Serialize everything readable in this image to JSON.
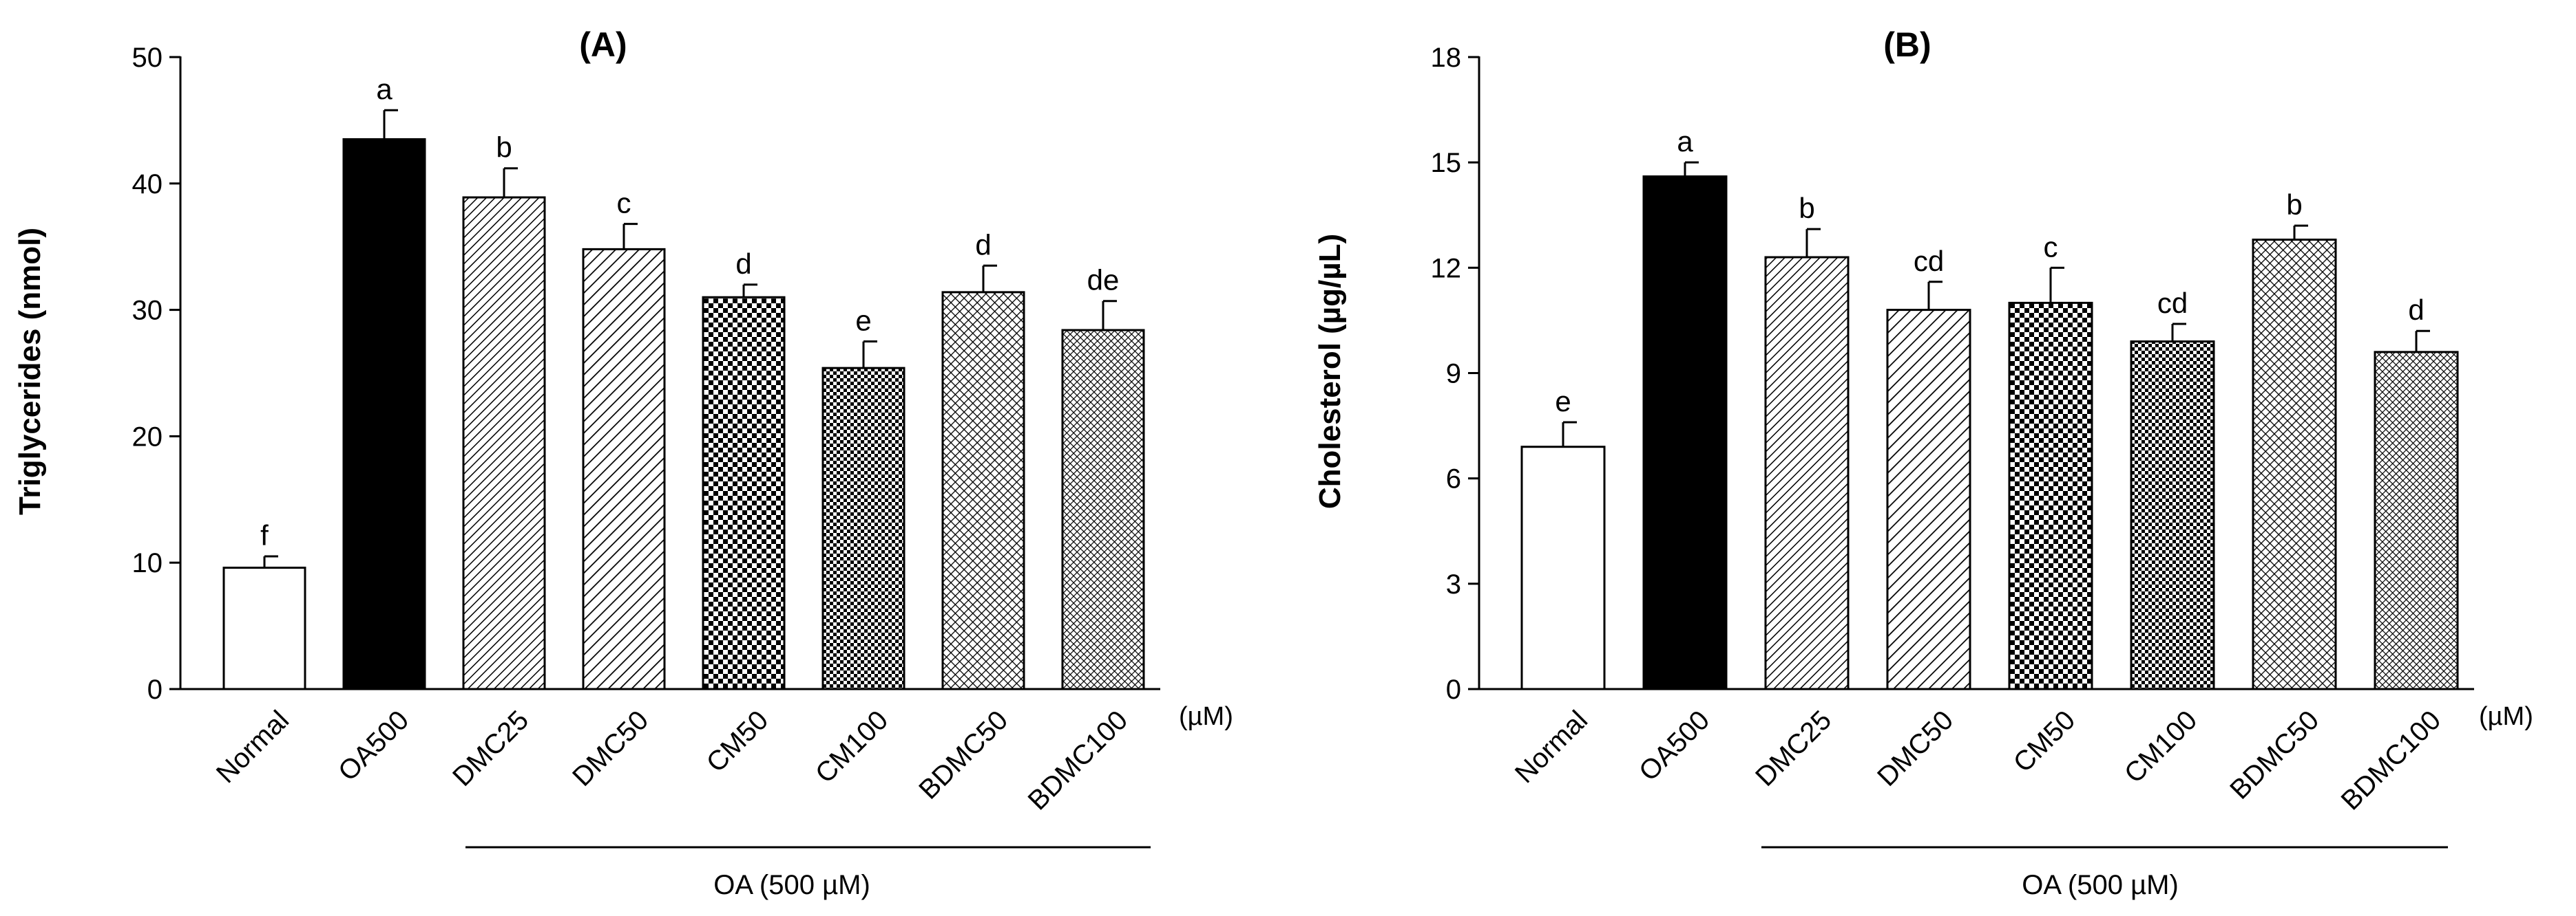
{
  "colors": {
    "ink": "#000000",
    "paper": "#ffffff",
    "error_bar": "#000000"
  },
  "chart_data": [
    {
      "type": "bar",
      "panel": "A",
      "title": "(A)",
      "ylabel": "Triglycerides (nmol)",
      "xlabel": "",
      "unit_label": "(µM)",
      "group_label": "OA (500 µM)",
      "ylim": [
        0,
        50
      ],
      "yticks": [
        0,
        10,
        20,
        30,
        40,
        50
      ],
      "ytick_labels": [
        "0",
        "10",
        "20",
        "30",
        "40",
        "50"
      ],
      "grid": false,
      "categories": [
        "Normal",
        "OA500",
        "DMC25",
        "DMC50",
        "CM50",
        "CM100",
        "BDMC50",
        "BDMC100"
      ],
      "values": [
        9.6,
        43.5,
        38.9,
        34.8,
        31.0,
        25.4,
        31.4,
        28.4
      ],
      "errors": [
        0.9,
        2.3,
        2.3,
        2.0,
        1.0,
        2.1,
        2.1,
        2.3
      ],
      "significance": [
        "f",
        "a",
        "b",
        "c",
        "d",
        "e",
        "d",
        "de"
      ],
      "fills": [
        "white",
        "black",
        "diag-fine",
        "diag-coarse",
        "checker-coarse",
        "checker-fine",
        "cross-coarse",
        "cross-fine"
      ]
    },
    {
      "type": "bar",
      "panel": "B",
      "title": "(B)",
      "ylabel": "Cholesterol (µg/µL)",
      "xlabel": "",
      "unit_label": "(µM)",
      "group_label": "OA (500 µM)",
      "ylim": [
        0,
        18
      ],
      "yticks": [
        0,
        3,
        6,
        9,
        12,
        15,
        18
      ],
      "ytick_labels": [
        "0",
        "3",
        "6",
        "9",
        "12",
        "15",
        "18"
      ],
      "grid": false,
      "categories": [
        "Normal",
        "OA500",
        "DMC25",
        "DMC50",
        "CM50",
        "CM100",
        "BDMC50",
        "BDMC100"
      ],
      "values": [
        6.9,
        14.6,
        12.3,
        10.8,
        11.0,
        9.9,
        12.8,
        9.6
      ],
      "errors": [
        0.7,
        0.4,
        0.8,
        0.8,
        1.0,
        0.5,
        0.4,
        0.6
      ],
      "significance": [
        "e",
        "a",
        "b",
        "cd",
        "c",
        "cd",
        "b",
        "d"
      ],
      "fills": [
        "white",
        "black",
        "diag-fine",
        "diag-coarse",
        "checker-coarse",
        "checker-fine",
        "cross-coarse",
        "cross-fine"
      ]
    }
  ]
}
